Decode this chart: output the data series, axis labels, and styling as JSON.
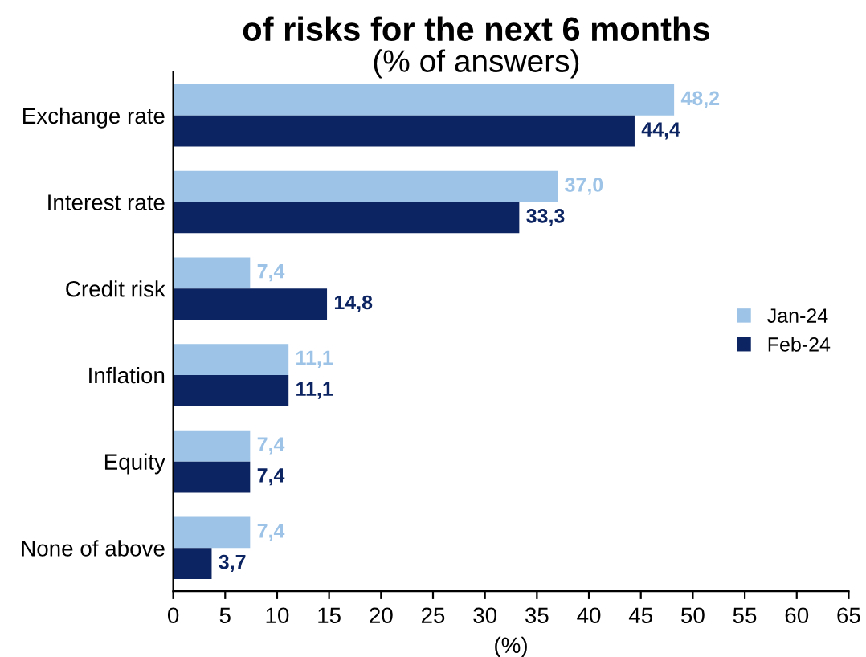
{
  "chart_data": {
    "type": "bar",
    "orientation": "horizontal",
    "title": "of risks for the next 6 months",
    "subtitle": "(% of answers)",
    "xlabel": "(%)",
    "categories": [
      "Exchange rate",
      "Interest rate",
      "Credit risk",
      "Inflation",
      "Equity",
      "None of above"
    ],
    "series": [
      {
        "name": "Jan-24",
        "color": "#9dc3e6",
        "values": [
          48.2,
          37.0,
          7.4,
          11.1,
          7.4,
          7.4
        ],
        "value_labels": [
          "48,2",
          "37,0",
          "7,4",
          "11,1",
          "7,4",
          "7,4"
        ]
      },
      {
        "name": "Feb-24",
        "color": "#0c2461",
        "values": [
          44.4,
          33.3,
          14.8,
          11.1,
          7.4,
          3.7
        ],
        "value_labels": [
          "44,4",
          "33,3",
          "14,8",
          "11,1",
          "7,4",
          "3,7"
        ]
      }
    ],
    "xlim": [
      0,
      65
    ],
    "xticks": [
      0,
      5,
      10,
      15,
      20,
      25,
      30,
      35,
      40,
      45,
      50,
      55,
      60,
      65
    ],
    "grid": false,
    "legend": "right"
  }
}
